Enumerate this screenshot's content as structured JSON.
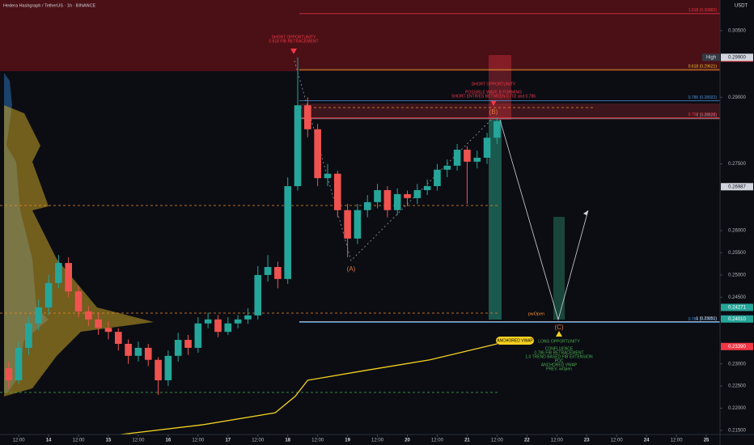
{
  "chart_data": {
    "type": "candlestick",
    "title": "Hedera Hashgraph / TetherUS · 1h · BINANCE",
    "currency": "USDT",
    "up_color": "#26a69a",
    "down_color": "#ef5350",
    "xlim": [
      -19.5,
      269.5
    ],
    "ylim": [
      0.2141,
      0.3119
    ],
    "grid": false,
    "xticks": [
      {
        "value": -12,
        "label": "12:00"
      },
      {
        "value": 0,
        "label": "14"
      },
      {
        "value": 12,
        "label": "12:00"
      },
      {
        "value": 24,
        "label": "15"
      },
      {
        "value": 36,
        "label": "12:00"
      },
      {
        "value": 48,
        "label": "16"
      },
      {
        "value": 60,
        "label": "12:00"
      },
      {
        "value": 72,
        "label": "17"
      },
      {
        "value": 84,
        "label": "12:00"
      },
      {
        "value": 96,
        "label": "18"
      },
      {
        "value": 108,
        "label": "12:00"
      },
      {
        "value": 120,
        "label": "19"
      },
      {
        "value": 132,
        "label": "12:00"
      },
      {
        "value": 144,
        "label": "20"
      },
      {
        "value": 156,
        "label": "12:00"
      },
      {
        "value": 168,
        "label": "21"
      },
      {
        "value": 180,
        "label": "12:00"
      },
      {
        "value": 192,
        "label": "22"
      },
      {
        "value": 204,
        "label": "12:00"
      },
      {
        "value": 216,
        "label": "23"
      },
      {
        "value": 228,
        "label": "12:00"
      },
      {
        "value": 240,
        "label": "24"
      },
      {
        "value": 252,
        "label": "12:00"
      },
      {
        "value": 264,
        "label": "25"
      }
    ],
    "yticks": [
      {
        "value": 0.305,
        "label": "0.30500"
      },
      {
        "value": 0.29,
        "label": "0.29000"
      },
      {
        "value": 0.275,
        "label": "0.27500"
      },
      {
        "value": 0.26,
        "label": "0.26000"
      },
      {
        "value": 0.255,
        "label": "0.25500"
      },
      {
        "value": 0.25,
        "label": "0.25000"
      },
      {
        "value": 0.245,
        "label": "0.24500"
      },
      {
        "value": 0.23,
        "label": "0.23000"
      },
      {
        "value": 0.225,
        "label": "0.22500"
      },
      {
        "value": 0.22,
        "label": "0.22000"
      },
      {
        "value": 0.215,
        "label": "0.21500"
      }
    ],
    "x": [
      -16,
      -12,
      -8,
      -4,
      0,
      4,
      8,
      12,
      16,
      20,
      24,
      28,
      32,
      36,
      40,
      44,
      48,
      52,
      56,
      60,
      64,
      68,
      72,
      76,
      80,
      84,
      88,
      92,
      96,
      100,
      104,
      108,
      112,
      116,
      120,
      124,
      128,
      132,
      136,
      140,
      144,
      148,
      152,
      156,
      160,
      164,
      168,
      172,
      176,
      180
    ],
    "open": [
      0.229,
      0.2263,
      0.2336,
      0.2391,
      0.2427,
      0.2482,
      0.2527,
      0.2463,
      0.2418,
      0.24,
      0.2381,
      0.2372,
      0.2345,
      0.2318,
      0.2336,
      0.2309,
      0.2263,
      0.2318,
      0.2354,
      0.2336,
      0.2391,
      0.24,
      0.2372,
      0.2391,
      0.24,
      0.2409,
      0.25,
      0.2518,
      0.2491,
      0.27,
      0.2882,
      0.2828,
      0.2718,
      0.2728,
      0.2646,
      0.2582,
      0.2646,
      0.2664,
      0.2691,
      0.2646,
      0.2682,
      0.2673,
      0.2691,
      0.27,
      0.2737,
      0.2746,
      0.2782,
      0.2755,
      0.2764,
      0.2809
    ],
    "high": [
      0.2305,
      0.235,
      0.2405,
      0.2445,
      0.25,
      0.2545,
      0.254,
      0.2475,
      0.243,
      0.2415,
      0.2395,
      0.238,
      0.2355,
      0.235,
      0.2345,
      0.2315,
      0.233,
      0.237,
      0.2365,
      0.2405,
      0.2415,
      0.241,
      0.2405,
      0.241,
      0.2425,
      0.252,
      0.2545,
      0.253,
      0.272,
      0.299,
      0.29,
      0.284,
      0.275,
      0.2735,
      0.266,
      0.266,
      0.268,
      0.2705,
      0.27,
      0.2695,
      0.269,
      0.2705,
      0.2715,
      0.275,
      0.276,
      0.2795,
      0.279,
      0.278,
      0.282,
      0.2855
    ],
    "low": [
      0.2245,
      0.2255,
      0.232,
      0.2375,
      0.241,
      0.247,
      0.245,
      0.2405,
      0.2385,
      0.2365,
      0.2355,
      0.233,
      0.23,
      0.2305,
      0.2295,
      0.223,
      0.225,
      0.2305,
      0.232,
      0.2325,
      0.238,
      0.236,
      0.2365,
      0.238,
      0.239,
      0.24,
      0.2485,
      0.247,
      0.248,
      0.269,
      0.281,
      0.27,
      0.27,
      0.263,
      0.254,
      0.257,
      0.263,
      0.265,
      0.263,
      0.2635,
      0.2655,
      0.266,
      0.268,
      0.269,
      0.272,
      0.2735,
      0.266,
      0.274,
      0.275,
      0.2795
    ],
    "close": [
      0.2263,
      0.2336,
      0.2391,
      0.2427,
      0.2482,
      0.2527,
      0.2463,
      0.2418,
      0.24,
      0.2381,
      0.2372,
      0.2345,
      0.2318,
      0.2336,
      0.2309,
      0.2263,
      0.2318,
      0.2354,
      0.2336,
      0.2391,
      0.24,
      0.2372,
      0.2391,
      0.24,
      0.2409,
      0.25,
      0.2518,
      0.2491,
      0.27,
      0.2882,
      0.2828,
      0.2718,
      0.2728,
      0.2646,
      0.2582,
      0.2646,
      0.2664,
      0.2691,
      0.2646,
      0.2682,
      0.2673,
      0.2691,
      0.27,
      0.2737,
      0.2746,
      0.2782,
      0.2755,
      0.2764,
      0.2809,
      0.2846
    ],
    "vwap": {
      "name": "ANCHORED VWAP",
      "color": "#f5d020",
      "x": [
        29,
        62,
        91,
        99,
        104,
        127,
        153,
        180
      ],
      "values": [
        0.2141,
        0.2163,
        0.219,
        0.2227,
        0.2263,
        0.2285,
        0.2309,
        0.2345
      ]
    },
    "levels": [
      {
        "label": "1.618 (0.30882)",
        "value": 0.30882,
        "color": "#f23645"
      },
      {
        "label": "0.618 (0.29621)",
        "value": 0.29621,
        "color": "#e6c229"
      },
      {
        "label": "0.786 (0.28922)",
        "value": 0.28922,
        "color": "#4a90d9"
      },
      {
        "label": "0.702 (0.28538)",
        "value": 0.28538,
        "color": "#f23645"
      },
      {
        "label": "0 (0.28521)",
        "value": 0.28521,
        "color": "#787b86"
      },
      {
        "label": "0.786 (0.23931)",
        "value": 0.23931,
        "color": "#4a90d9"
      },
      {
        "label": "1 (0.23951)",
        "value": 0.23951,
        "color": "#d1d4dc"
      }
    ],
    "price_labels": [
      {
        "value": 0.29883,
        "label": "0.29883",
        "color": "#f23645"
      },
      {
        "value": 0.299,
        "label": "0.29900",
        "tag": "High",
        "color": "#d1d4dc"
      },
      {
        "value": 0.26987,
        "label": "0.26987",
        "color": "#d1d4dc"
      },
      {
        "value": 0.24271,
        "label": "0.24271",
        "color": "#26a69a"
      },
      {
        "value": 0.2401,
        "label": "0.24010",
        "color": "#26a69a"
      },
      {
        "value": 0.2339,
        "label": "0.23390",
        "color": "#f23645"
      }
    ],
    "annotations": {
      "short_1": [
        "SHORT OPPORTUNITY",
        "0.618 FIB RETRACEMENT"
      ],
      "short_2": [
        "SHORT OPPORTUNITY",
        "POSSIBLE WAVE B FORMING",
        "SHORT ENTRIES BETWEEN 0.702 and 0.786"
      ],
      "waves": [
        "(A)",
        "(B)",
        "(C)"
      ],
      "pwopen": "pwOpen",
      "long": [
        "LONG OPPORTUNITY",
        "CONFLUENCE",
        "0.786 FIB RETRACEMENT",
        "1.0 TREND BASED FIB EXTENSION",
        "POC",
        "ANCHORED VWAP",
        "PREV. wOpen"
      ]
    }
  }
}
